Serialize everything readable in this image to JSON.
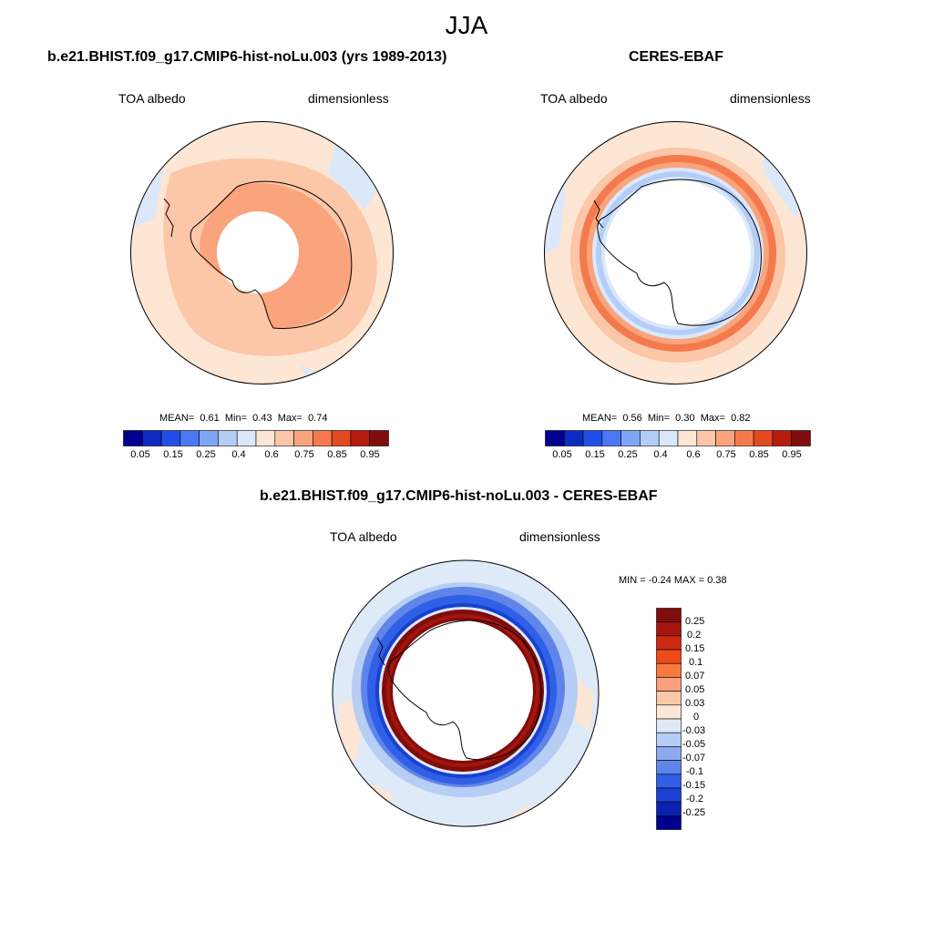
{
  "page_title": "JJA",
  "panels": {
    "model": {
      "title": "b.e21.BHIST.f09_g17.CMIP6-hist-noLu.003 (yrs 1989-2013)",
      "left_label": "TOA albedo",
      "right_label": "dimensionless",
      "mean_label": "MEAN=",
      "mean": "0.61",
      "min_label": "Min=",
      "min": "0.43",
      "max_label": "Max=",
      "max": "0.74"
    },
    "obs": {
      "title": "CERES-EBAF",
      "left_label": "TOA albedo",
      "right_label": "dimensionless",
      "mean_label": "MEAN=",
      "mean": "0.56",
      "min_label": "Min=",
      "min": "0.30",
      "max_label": "Max=",
      "max": "0.82"
    },
    "diff": {
      "title": "b.e21.BHIST.f09_g17.CMIP6-hist-noLu.003 - CERES-EBAF",
      "left_label": "TOA albedo",
      "right_label": "dimensionless",
      "minmax_text": "MIN =  -0.24 MAX =   0.38"
    }
  },
  "chart_data": [
    {
      "type": "heatmap",
      "projection": "south-polar-stereographic",
      "title": "b.e21.BHIST.f09_g17.CMIP6-hist-noLu.003 (yrs 1989-2013)",
      "variable": "TOA albedo",
      "units": "dimensionless",
      "mean": 0.61,
      "min": 0.43,
      "max": 0.74,
      "colorbar_ticks": [
        "0.05",
        "0.15",
        "0.25",
        "0.4",
        "0.6",
        "0.75",
        "0.85",
        "0.95"
      ]
    },
    {
      "type": "heatmap",
      "projection": "south-polar-stereographic",
      "title": "CERES-EBAF",
      "variable": "TOA albedo",
      "units": "dimensionless",
      "mean": 0.56,
      "min": 0.3,
      "max": 0.82,
      "colorbar_ticks": [
        "0.05",
        "0.15",
        "0.25",
        "0.4",
        "0.6",
        "0.75",
        "0.85",
        "0.95"
      ]
    },
    {
      "type": "heatmap",
      "projection": "south-polar-stereographic",
      "title": "b.e21.BHIST.f09_g17.CMIP6-hist-noLu.003 - CERES-EBAF",
      "variable": "TOA albedo",
      "units": "dimensionless",
      "min": -0.24,
      "max": 0.38,
      "colorbar_ticks": [
        "0.25",
        "0.2",
        "0.15",
        "0.1",
        "0.07",
        "0.05",
        "0.03",
        "0",
        "-0.03",
        "-0.05",
        "-0.07",
        "-0.1",
        "-0.15",
        "-0.2",
        "-0.25"
      ]
    }
  ],
  "colors": {
    "abs_scale": [
      "#00008f",
      "#0d2bc2",
      "#1f4fe8",
      "#4a78f2",
      "#7ea6f5",
      "#b4cdf7",
      "#dbe8f9",
      "#fde6d4",
      "#fcc6a8",
      "#f9a47d",
      "#f47a4d",
      "#e44a1f",
      "#b51e0e",
      "#7f0d0d"
    ],
    "diff_scale": [
      "#7f0d0d",
      "#a4150e",
      "#cc2a12",
      "#ee4a1a",
      "#f7793f",
      "#faa07a",
      "#fcc8a8",
      "#fde6d6",
      "#dfeaf9",
      "#b6cdf4",
      "#8daaf0",
      "#5f85ea",
      "#3060e6",
      "#1a40d2",
      "#0b22b0",
      "#00008f"
    ]
  }
}
